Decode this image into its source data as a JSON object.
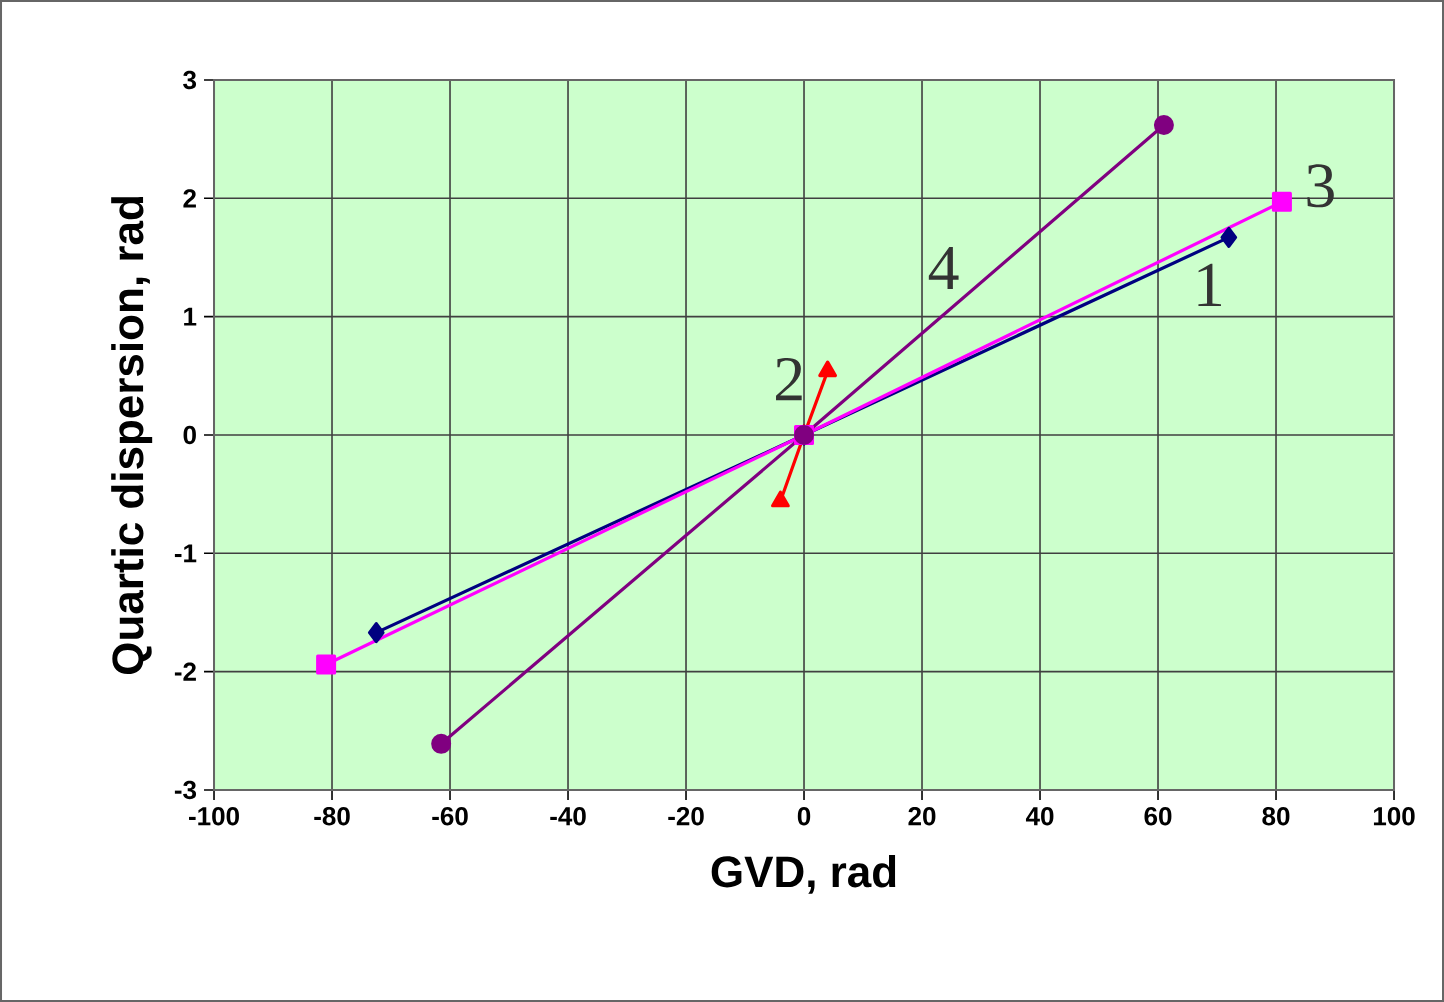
{
  "chart_data": {
    "type": "line",
    "xlabel": "GVD, rad",
    "ylabel": "Quartic dispersion, rad",
    "xlim": [
      -100,
      100
    ],
    "xticks": [
      -100,
      -80,
      -60,
      -40,
      -20,
      0,
      20,
      40,
      60,
      80,
      100
    ],
    "ylim": [
      -3,
      3
    ],
    "yticks": [
      -3,
      -2,
      -1,
      0,
      1,
      2,
      3
    ],
    "grid": true,
    "legend": false,
    "line_style": "solid",
    "series": [
      {
        "name": "1",
        "color": "#000080",
        "marker": "diamond",
        "x": [
          -72.5,
          0,
          72
        ],
        "values": [
          -1.67,
          0,
          1.67
        ]
      },
      {
        "name": "2",
        "color": "#ff0000",
        "marker": "triangle",
        "x": [
          -4,
          0,
          4
        ],
        "values": [
          -0.56,
          0,
          0.54
        ]
      },
      {
        "name": "3",
        "color": "#ff00ff",
        "marker": "square",
        "x": [
          -81,
          0,
          81
        ],
        "values": [
          -1.94,
          0,
          1.97
        ]
      },
      {
        "name": "4",
        "color": "#800080",
        "marker": "circle",
        "x": [
          -61.5,
          0,
          61
        ],
        "values": [
          -2.61,
          0,
          2.62
        ]
      }
    ]
  }
}
